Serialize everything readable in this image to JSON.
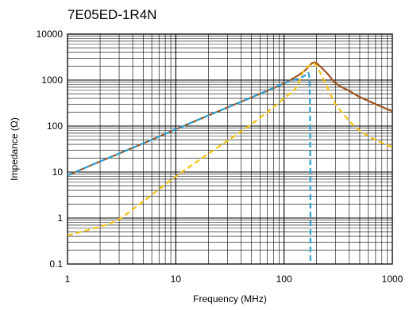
{
  "chart_data": {
    "type": "line",
    "title": "7E05ED-1R4N",
    "xlabel": "Frequency (MHz)",
    "ylabel": "Impedance (Ω)",
    "x_scale": "log",
    "y_scale": "log",
    "xlim": [
      1,
      1000
    ],
    "ylim": [
      0.1,
      10000
    ],
    "x_ticks": [
      "1",
      "10",
      "100",
      "1000"
    ],
    "y_ticks": [
      "0.1",
      "1",
      "10",
      "100",
      "1000",
      "10000"
    ],
    "grid": true,
    "series": [
      {
        "color": "#a0521e",
        "dash": "solid",
        "x": [
          1,
          2,
          5,
          10,
          20,
          50,
          100,
          150,
          180,
          200,
          250,
          300,
          400,
          500,
          700,
          1000
        ],
        "y": [
          8.5,
          17,
          42,
          85,
          170,
          420,
          850,
          1500,
          2300,
          2300,
          1400,
          850,
          580,
          430,
          300,
          210
        ]
      },
      {
        "color": "#2ba2d8",
        "dash": "dashed",
        "x": [
          1,
          2,
          5,
          10,
          20,
          50,
          100,
          140,
          160,
          172,
          175,
          175
        ],
        "y": [
          8.5,
          17,
          42,
          85,
          170,
          420,
          850,
          1100,
          1250,
          800,
          3,
          0.1
        ]
      },
      {
        "color": "#f5c211",
        "dash": "dashed",
        "x": [
          1,
          2,
          3,
          5,
          10,
          20,
          50,
          100,
          130,
          150,
          180,
          200,
          250,
          300,
          400,
          500,
          700,
          1000
        ],
        "y": [
          0.42,
          0.65,
          0.95,
          2.3,
          8,
          25,
          110,
          400,
          700,
          1500,
          2200,
          2000,
          700,
          300,
          130,
          80,
          50,
          35
        ]
      }
    ]
  }
}
